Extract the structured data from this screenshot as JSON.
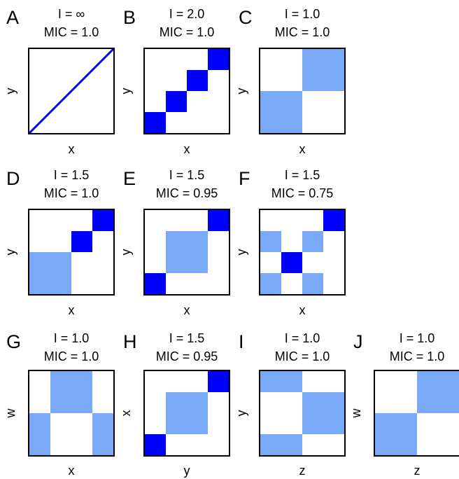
{
  "colors": {
    "dark": "#0000ff",
    "light": "#7aaaf7",
    "frame": "#000000"
  },
  "panels": [
    {
      "id": "A",
      "letter": "A",
      "i_text": "I = ∞",
      "mic_text": "MIC = 1.0",
      "xlabel": "x",
      "ylabel": "y",
      "line": true,
      "cells": []
    },
    {
      "id": "B",
      "letter": "B",
      "i_text": "I = 2.0",
      "mic_text": "MIC = 1.0",
      "xlabel": "x",
      "ylabel": "y",
      "line": false,
      "cells": [
        {
          "c": 0,
          "r": 0,
          "n": 4,
          "s": "dark"
        },
        {
          "c": 1,
          "r": 1,
          "n": 4,
          "s": "dark"
        },
        {
          "c": 2,
          "r": 2,
          "n": 4,
          "s": "dark"
        },
        {
          "c": 3,
          "r": 3,
          "n": 4,
          "s": "dark"
        }
      ]
    },
    {
      "id": "C",
      "letter": "C",
      "i_text": "I = 1.0",
      "mic_text": "MIC = 1.0",
      "xlabel": "x",
      "ylabel": "y",
      "line": false,
      "cells": [
        {
          "c": 0,
          "r": 0,
          "n": 2,
          "s": "light"
        },
        {
          "c": 1,
          "r": 1,
          "n": 2,
          "s": "light"
        }
      ]
    },
    {
      "id": "D",
      "letter": "D",
      "i_text": "I = 1.5",
      "mic_text": "MIC = 1.0",
      "xlabel": "x",
      "ylabel": "y",
      "line": false,
      "cells": [
        {
          "c": 0,
          "r": 0,
          "w": 2,
          "h": 2,
          "n": 4,
          "s": "light"
        },
        {
          "c": 2,
          "r": 2,
          "n": 4,
          "s": "dark"
        },
        {
          "c": 3,
          "r": 3,
          "n": 4,
          "s": "dark"
        }
      ]
    },
    {
      "id": "E",
      "letter": "E",
      "i_text": "I = 1.5",
      "mic_text": "MIC = 0.95",
      "xlabel": "x",
      "ylabel": "y",
      "line": false,
      "cells": [
        {
          "c": 0,
          "r": 0,
          "n": 4,
          "s": "dark"
        },
        {
          "c": 1,
          "r": 1,
          "w": 2,
          "h": 2,
          "n": 4,
          "s": "light"
        },
        {
          "c": 3,
          "r": 3,
          "n": 4,
          "s": "dark"
        }
      ]
    },
    {
      "id": "F",
      "letter": "F",
      "i_text": "I = 1.5",
      "mic_text": "MIC = 0.75",
      "xlabel": "x",
      "ylabel": "y",
      "line": false,
      "cells": [
        {
          "c": 0,
          "r": 0,
          "n": 4,
          "s": "light"
        },
        {
          "c": 2,
          "r": 0,
          "n": 4,
          "s": "light"
        },
        {
          "c": 1,
          "r": 1,
          "n": 4,
          "s": "dark"
        },
        {
          "c": 0,
          "r": 2,
          "n": 4,
          "s": "light"
        },
        {
          "c": 2,
          "r": 2,
          "n": 4,
          "s": "light"
        },
        {
          "c": 3,
          "r": 3,
          "n": 4,
          "s": "dark"
        }
      ]
    },
    {
      "id": "G",
      "letter": "G",
      "i_text": "I = 1.0",
      "mic_text": "MIC = 1.0",
      "xlabel": "x",
      "ylabel": "w",
      "line": false,
      "cells": [
        {
          "c": 0,
          "r": 0,
          "w": 1,
          "h": 2,
          "n": 4,
          "s": "light"
        },
        {
          "c": 3,
          "r": 0,
          "w": 1,
          "h": 2,
          "n": 4,
          "s": "light"
        },
        {
          "c": 1,
          "r": 2,
          "w": 2,
          "h": 2,
          "n": 4,
          "s": "light"
        }
      ]
    },
    {
      "id": "H",
      "letter": "H",
      "i_text": "I = 1.5",
      "mic_text": "MIC = 0.95",
      "xlabel": "y",
      "ylabel": "x",
      "line": false,
      "cells": [
        {
          "c": 0,
          "r": 0,
          "n": 4,
          "s": "dark"
        },
        {
          "c": 1,
          "r": 1,
          "w": 2,
          "h": 2,
          "n": 4,
          "s": "light"
        },
        {
          "c": 3,
          "r": 3,
          "n": 4,
          "s": "dark"
        }
      ]
    },
    {
      "id": "I",
      "letter": "I",
      "i_text": "I = 1.0",
      "mic_text": "MIC = 1.0",
      "xlabel": "z",
      "ylabel": "y",
      "line": false,
      "cells": [
        {
          "c": 0,
          "r": 0,
          "w": 2,
          "h": 1,
          "n": 4,
          "s": "light"
        },
        {
          "c": 2,
          "r": 1,
          "w": 2,
          "h": 2,
          "n": 4,
          "s": "light"
        },
        {
          "c": 0,
          "r": 3,
          "w": 2,
          "h": 1,
          "n": 4,
          "s": "light"
        }
      ]
    },
    {
      "id": "J",
      "letter": "J",
      "i_text": "I = 1.0",
      "mic_text": "MIC = 1.0",
      "xlabel": "z",
      "ylabel": "w",
      "line": false,
      "cells": [
        {
          "c": 0,
          "r": 0,
          "n": 2,
          "s": "light"
        },
        {
          "c": 1,
          "r": 1,
          "n": 2,
          "s": "light"
        }
      ]
    }
  ]
}
